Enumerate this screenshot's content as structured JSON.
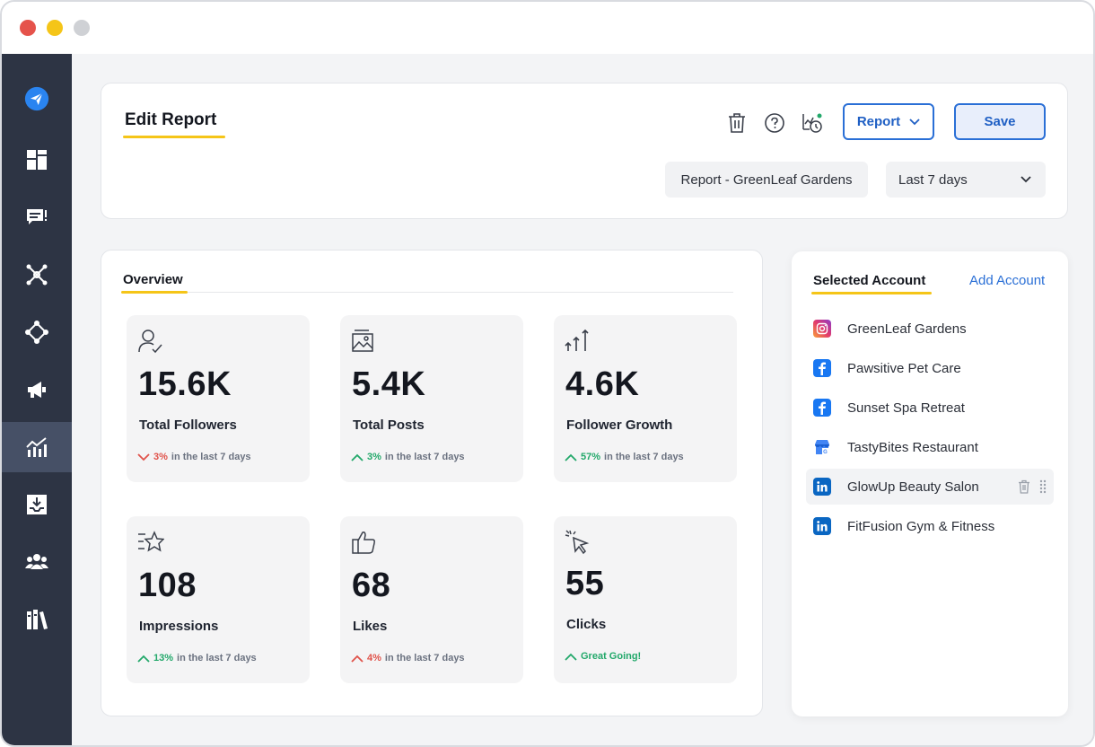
{
  "colors": {
    "sidebar": "#2d3444",
    "sidebar_active": "#465066",
    "accent_blue": "#2a6fd6",
    "accent_yellow": "#f5c518",
    "down": "#e0524a",
    "up": "#22a86a"
  },
  "sidebar": {
    "items": [
      {
        "icon": "send-logo-icon"
      },
      {
        "icon": "dashboard-icon"
      },
      {
        "icon": "messages-icon"
      },
      {
        "icon": "network-icon"
      },
      {
        "icon": "workflow-icon"
      },
      {
        "icon": "megaphone-icon"
      },
      {
        "icon": "analytics-icon",
        "active": true
      },
      {
        "icon": "download-icon"
      },
      {
        "icon": "team-icon"
      },
      {
        "icon": "library-icon"
      }
    ]
  },
  "header": {
    "title": "Edit Report",
    "report_button": "Report",
    "save_button": "Save",
    "report_name": "Report - GreenLeaf Gardens",
    "date_range": "Last 7 days"
  },
  "overview": {
    "title": "Overview",
    "stats": [
      {
        "icon": "followers-icon",
        "value": "15.6K",
        "label": "Total Followers",
        "direction": "down",
        "pct": "3%",
        "suffix": "in the last 7 days"
      },
      {
        "icon": "image-icon",
        "value": "5.4K",
        "label": "Total Posts",
        "direction": "up",
        "pct": "3%",
        "suffix": "in the last 7 days"
      },
      {
        "icon": "growth-icon",
        "value": "4.6K",
        "label": "Follower Growth",
        "direction": "up",
        "pct": "57%",
        "suffix": "in the last 7 days"
      },
      {
        "icon": "star-icon",
        "value": "108",
        "label": "Impressions",
        "direction": "up",
        "pct": "13%",
        "suffix": "in the last 7 days"
      },
      {
        "icon": "thumbs-up-icon",
        "value": "68",
        "label": "Likes",
        "direction": "down",
        "pct": "4%",
        "suffix": "in the last 7 days"
      },
      {
        "icon": "cursor-click-icon",
        "value": "55",
        "label": "Clicks",
        "direction": "up",
        "pct": "",
        "suffix": "Great Going!"
      }
    ]
  },
  "accounts": {
    "title": "Selected Account",
    "add_label": "Add Account",
    "items": [
      {
        "name": "GreenLeaf Gardens",
        "network": "instagram"
      },
      {
        "name": "Pawsitive Pet Care",
        "network": "facebook"
      },
      {
        "name": "Sunset Spa Retreat",
        "network": "facebook"
      },
      {
        "name": "TastyBites Restaurant",
        "network": "google-business"
      },
      {
        "name": "GlowUp Beauty Salon",
        "network": "linkedin",
        "hovered": true
      },
      {
        "name": "FitFusion Gym & Fitness",
        "network": "linkedin"
      }
    ]
  }
}
